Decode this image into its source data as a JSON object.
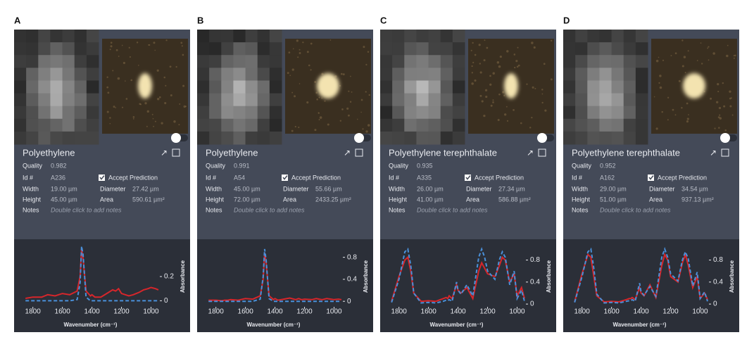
{
  "field_labels": {
    "quality": "Quality",
    "id": "Id #",
    "width": "Width",
    "height": "Height",
    "diameter": "Diameter",
    "area": "Area",
    "notes": "Notes"
  },
  "accept": "Accept Prediction",
  "notes_placeholder": "Double click to add notes",
  "panels": [
    {
      "label": "A",
      "name": "Polyethylene",
      "quality": "0.982",
      "id": "A236",
      "width": "19.00 µm",
      "height": "45.00 µm",
      "diameter": "27.42 µm",
      "area": "590.61 µm²"
    },
    {
      "label": "B",
      "name": "Polyethylene",
      "quality": "0.991",
      "id": "A54",
      "width": "45.00 µm",
      "height": "72.00 µm",
      "diameter": "55.66 µm",
      "area": "2433.25 µm²"
    },
    {
      "label": "C",
      "name": "Polyethylene terephthalate",
      "quality": "0.935",
      "id": "A335",
      "width": "26.00 µm",
      "height": "41.00 µm",
      "diameter": "27.34 µm",
      "area": "586.88 µm²"
    },
    {
      "label": "D",
      "name": "Polyethylene terephthalate",
      "quality": "0.952",
      "id": "A162",
      "width": "29.00 µm",
      "height": "51.00 µm",
      "diameter": "34.54 µm",
      "area": "937.13 µm²"
    }
  ],
  "chart_data": [
    {
      "type": "line",
      "x_label": "Wavenumber (cm⁻¹)",
      "y_label": "Absorbance",
      "x": [
        1850,
        1800,
        1760,
        1740,
        1720,
        1700,
        1650,
        1600,
        1550,
        1500,
        1480,
        1470,
        1460,
        1440,
        1410,
        1400,
        1380,
        1340,
        1300,
        1260,
        1240,
        1220,
        1200,
        1150,
        1120,
        1100,
        1080,
        1050,
        1020,
        1000,
        970,
        950
      ],
      "xlim": [
        1870,
        950
      ],
      "xticks": [
        1800,
        1600,
        1400,
        1200,
        1000
      ],
      "ylim": [
        -0.05,
        0.45
      ],
      "yticks": [
        0,
        0.2
      ],
      "series": [
        {
          "color": "#d7262b",
          "dash": false,
          "values": [
            0.02,
            0.03,
            0.03,
            0.03,
            0.04,
            0.05,
            0.04,
            0.06,
            0.05,
            0.08,
            0.2,
            0.43,
            0.35,
            0.08,
            0.04,
            0.05,
            0.03,
            0.03,
            0.06,
            0.09,
            0.08,
            0.1,
            0.06,
            0.04,
            0.05,
            0.06,
            0.07,
            0.09,
            0.1,
            0.11,
            0.1,
            0.09
          ]
        },
        {
          "color": "#4a90d9",
          "dash": true,
          "values": [
            0,
            0,
            0,
            0,
            0,
            0,
            0,
            0,
            0,
            0.01,
            0.15,
            0.45,
            0.38,
            0.03,
            0,
            0,
            0,
            0,
            0,
            0,
            0,
            0,
            0,
            0,
            0,
            0,
            0,
            0,
            0,
            0,
            0,
            0
          ]
        }
      ]
    },
    {
      "type": "line",
      "x_label": "Wavenumber (cm⁻¹)",
      "y_label": "Absorbance",
      "x": [
        1850,
        1800,
        1760,
        1740,
        1720,
        1700,
        1650,
        1600,
        1550,
        1500,
        1480,
        1470,
        1460,
        1440,
        1410,
        1400,
        1380,
        1340,
        1300,
        1260,
        1240,
        1220,
        1200,
        1150,
        1120,
        1100,
        1080,
        1050,
        1020,
        1000,
        970,
        950
      ],
      "xlim": [
        1870,
        950
      ],
      "xticks": [
        1800,
        1600,
        1400,
        1200,
        1000
      ],
      "ylim": [
        -0.1,
        1.0
      ],
      "yticks": [
        0,
        0.4,
        0.8
      ],
      "series": [
        {
          "color": "#d7262b",
          "dash": false,
          "values": [
            0.02,
            0.02,
            0.01,
            0.02,
            0.02,
            0.03,
            0.02,
            0.05,
            0.04,
            0.1,
            0.4,
            0.88,
            0.7,
            0.1,
            0.03,
            0.05,
            0.02,
            0.04,
            0.06,
            0.03,
            0.05,
            0.03,
            0.04,
            0.03,
            0.05,
            0.04,
            0.03,
            0.05,
            0.04,
            0.03,
            0.04,
            0.03
          ]
        },
        {
          "color": "#4a90d9",
          "dash": true,
          "values": [
            0,
            0,
            0,
            0,
            0,
            0,
            0,
            0,
            0,
            0.04,
            0.45,
            0.95,
            0.75,
            0.05,
            0,
            0,
            0,
            0,
            0,
            0,
            0,
            0,
            0,
            0,
            0,
            0,
            0,
            0,
            0,
            0,
            0,
            0
          ]
        }
      ]
    },
    {
      "type": "line",
      "x_label": "Wavenumber (cm⁻¹)",
      "y_label": "Absorbance",
      "x": [
        1850,
        1800,
        1760,
        1740,
        1720,
        1700,
        1650,
        1600,
        1550,
        1500,
        1480,
        1470,
        1460,
        1440,
        1410,
        1400,
        1380,
        1340,
        1300,
        1260,
        1240,
        1220,
        1200,
        1150,
        1120,
        1100,
        1080,
        1050,
        1020,
        1000,
        970,
        950
      ],
      "xlim": [
        1870,
        950
      ],
      "xticks": [
        1800,
        1600,
        1400,
        1200,
        1000
      ],
      "ylim": [
        -0.05,
        1.05
      ],
      "yticks": [
        0,
        0.4,
        0.8
      ],
      "series": [
        {
          "color": "#d7262b",
          "dash": false,
          "values": [
            0.05,
            0.5,
            0.8,
            0.85,
            0.6,
            0.2,
            0.05,
            0.06,
            0.05,
            0.1,
            0.12,
            0.1,
            0.15,
            0.1,
            0.35,
            0.25,
            0.2,
            0.3,
            0.1,
            0.6,
            0.75,
            0.65,
            0.55,
            0.5,
            0.7,
            0.85,
            0.8,
            0.4,
            0.55,
            0.15,
            0.3,
            0.1
          ]
        },
        {
          "color": "#4a90d9",
          "dash": true,
          "values": [
            0.03,
            0.45,
            0.95,
            1.0,
            0.7,
            0.2,
            0.02,
            0.03,
            0.02,
            0.05,
            0.07,
            0.06,
            0.08,
            0.05,
            0.4,
            0.25,
            0.18,
            0.35,
            0.15,
            0.85,
            1.0,
            0.85,
            0.6,
            0.45,
            0.8,
            0.95,
            0.85,
            0.35,
            0.6,
            0.1,
            0.25,
            0.05
          ]
        }
      ]
    },
    {
      "type": "line",
      "x_label": "Wavenumber (cm⁻¹)",
      "y_label": "Absorbance",
      "x": [
        1850,
        1800,
        1760,
        1740,
        1720,
        1700,
        1650,
        1600,
        1550,
        1500,
        1480,
        1470,
        1460,
        1440,
        1410,
        1400,
        1380,
        1340,
        1300,
        1260,
        1240,
        1220,
        1200,
        1150,
        1120,
        1100,
        1080,
        1050,
        1020,
        1000,
        970,
        950
      ],
      "xlim": [
        1870,
        950
      ],
      "xticks": [
        1800,
        1600,
        1400,
        1200,
        1000
      ],
      "ylim": [
        -0.05,
        1.05
      ],
      "yticks": [
        0,
        0.4,
        0.8
      ],
      "series": [
        {
          "color": "#d7262b",
          "dash": false,
          "values": [
            0.04,
            0.55,
            0.9,
            0.85,
            0.5,
            0.15,
            0.04,
            0.05,
            0.04,
            0.08,
            0.1,
            0.1,
            0.12,
            0.08,
            0.3,
            0.2,
            0.15,
            0.35,
            0.12,
            0.7,
            0.9,
            0.8,
            0.5,
            0.4,
            0.75,
            0.9,
            0.7,
            0.3,
            0.5,
            0.1,
            0.2,
            0.08
          ]
        },
        {
          "color": "#4a90d9",
          "dash": true,
          "values": [
            0.03,
            0.5,
            0.95,
            1.0,
            0.65,
            0.18,
            0.02,
            0.03,
            0.02,
            0.05,
            0.06,
            0.06,
            0.08,
            0.05,
            0.38,
            0.22,
            0.16,
            0.32,
            0.14,
            0.85,
            1.0,
            0.85,
            0.55,
            0.42,
            0.8,
            0.95,
            0.82,
            0.33,
            0.58,
            0.1,
            0.22,
            0.05
          ]
        }
      ]
    }
  ]
}
